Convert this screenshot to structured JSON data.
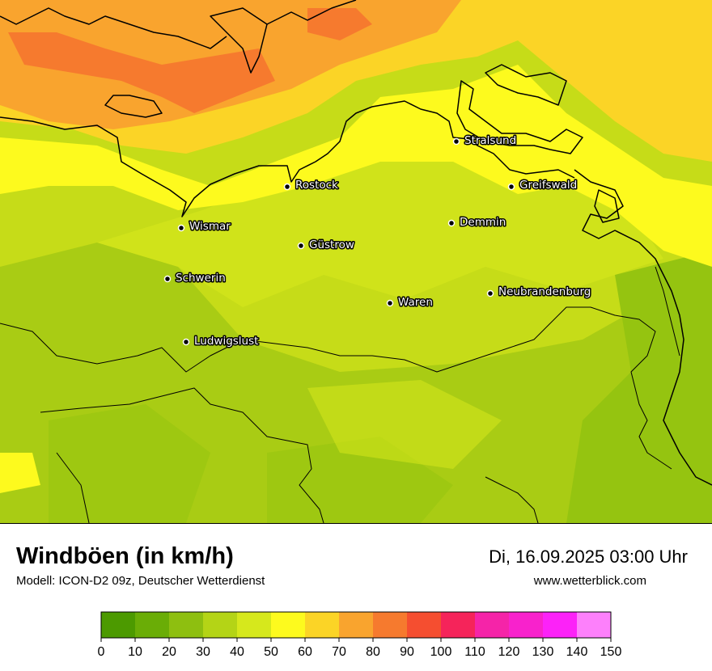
{
  "title": "Windböen (in km/h)",
  "subtitle": "Modell: ICON-D2 09z, Deutscher Wetterdienst",
  "datetime": "Di, 16.09.2025 03:00 Uhr",
  "website": "www.wetterblick.com",
  "cities": [
    {
      "name": "Stralsund"
    },
    {
      "name": "Rostock"
    },
    {
      "name": "Greifswald"
    },
    {
      "name": "Wismar"
    },
    {
      "name": "Demmin"
    },
    {
      "name": "Güstrow"
    },
    {
      "name": "Schwerin"
    },
    {
      "name": "Neubrandenburg"
    },
    {
      "name": "Waren"
    },
    {
      "name": "Ludwigslust"
    }
  ],
  "legend": {
    "bins": [
      {
        "from": 0,
        "to": 10,
        "color": "#4c9a00"
      },
      {
        "from": 10,
        "to": 20,
        "color": "#6aad06"
      },
      {
        "from": 20,
        "to": 30,
        "color": "#8ebf10"
      },
      {
        "from": 30,
        "to": 40,
        "color": "#b4d416"
      },
      {
        "from": 40,
        "to": 50,
        "color": "#d6e81c"
      },
      {
        "from": 50,
        "to": 60,
        "color": "#fdfa1e"
      },
      {
        "from": 60,
        "to": 70,
        "color": "#fbd426"
      },
      {
        "from": 70,
        "to": 80,
        "color": "#f9a42e"
      },
      {
        "from": 80,
        "to": 90,
        "color": "#f67a2e"
      },
      {
        "from": 90,
        "to": 100,
        "color": "#f54e30"
      },
      {
        "from": 100,
        "to": 110,
        "color": "#f5245a"
      },
      {
        "from": 110,
        "to": 120,
        "color": "#f524a8"
      },
      {
        "from": 120,
        "to": 130,
        "color": "#f822cc"
      },
      {
        "from": 130,
        "to": 140,
        "color": "#fc22f8"
      },
      {
        "from": 140,
        "to": 150,
        "color": "#fd80fb"
      }
    ],
    "ticks": [
      0,
      10,
      20,
      30,
      40,
      50,
      60,
      70,
      80,
      90,
      100,
      110,
      120,
      130,
      140,
      150
    ]
  }
}
